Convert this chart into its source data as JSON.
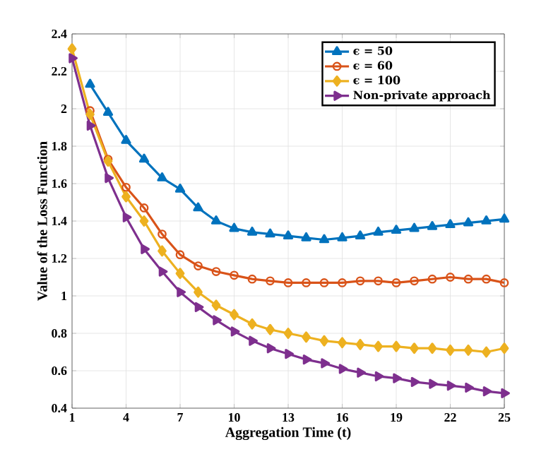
{
  "chart_data": {
    "type": "line",
    "xlabel": "Aggregation Time (t)",
    "ylabel": "Value of the Loss Function",
    "x": [
      1,
      2,
      3,
      4,
      5,
      6,
      7,
      8,
      9,
      10,
      11,
      12,
      13,
      14,
      15,
      16,
      17,
      18,
      19,
      20,
      21,
      22,
      23,
      24,
      25
    ],
    "series": [
      {
        "name": "ϵ =  50",
        "color": "#0072bd",
        "marker": "triangle",
        "values": [
          null,
          2.13,
          1.98,
          1.83,
          1.73,
          1.63,
          1.57,
          1.47,
          1.4,
          1.36,
          1.34,
          1.33,
          1.32,
          1.31,
          1.3,
          1.31,
          1.32,
          1.34,
          1.35,
          1.36,
          1.37,
          1.38,
          1.39,
          1.4,
          1.41
        ]
      },
      {
        "name": "ϵ =  60",
        "color": "#d95319",
        "marker": "circle",
        "values": [
          null,
          1.99,
          1.73,
          1.58,
          1.47,
          1.33,
          1.22,
          1.16,
          1.13,
          1.11,
          1.09,
          1.08,
          1.07,
          1.07,
          1.07,
          1.07,
          1.08,
          1.08,
          1.07,
          1.08,
          1.09,
          1.1,
          1.09,
          1.09,
          1.07
        ]
      },
      {
        "name": "ϵ = 100",
        "color": "#edb120",
        "marker": "diamond",
        "values": [
          2.32,
          1.97,
          1.72,
          1.53,
          1.4,
          1.24,
          1.12,
          1.02,
          0.95,
          0.9,
          0.85,
          0.82,
          0.8,
          0.78,
          0.76,
          0.75,
          0.74,
          0.73,
          0.73,
          0.72,
          0.72,
          0.71,
          0.71,
          0.7,
          0.72
        ]
      },
      {
        "name": "Non-private approach",
        "color": "#7e2f8e",
        "marker": "triangle-right",
        "values": [
          2.27,
          1.91,
          1.63,
          1.42,
          1.25,
          1.13,
          1.02,
          0.94,
          0.87,
          0.81,
          0.76,
          0.72,
          0.69,
          0.66,
          0.64,
          0.61,
          0.59,
          0.57,
          0.56,
          0.54,
          0.53,
          0.52,
          0.51,
          0.49,
          0.48
        ]
      }
    ],
    "xlim": [
      1,
      25
    ],
    "xticks": [
      1,
      4,
      7,
      10,
      13,
      16,
      19,
      22,
      25
    ],
    "ylim": [
      0.4,
      2.4
    ],
    "yticks": [
      0.4,
      0.6,
      0.8,
      1,
      1.2,
      1.4,
      1.6,
      1.8,
      2,
      2.2,
      2.4
    ],
    "grid": true,
    "legend": "top right",
    "line_style": "solid"
  }
}
